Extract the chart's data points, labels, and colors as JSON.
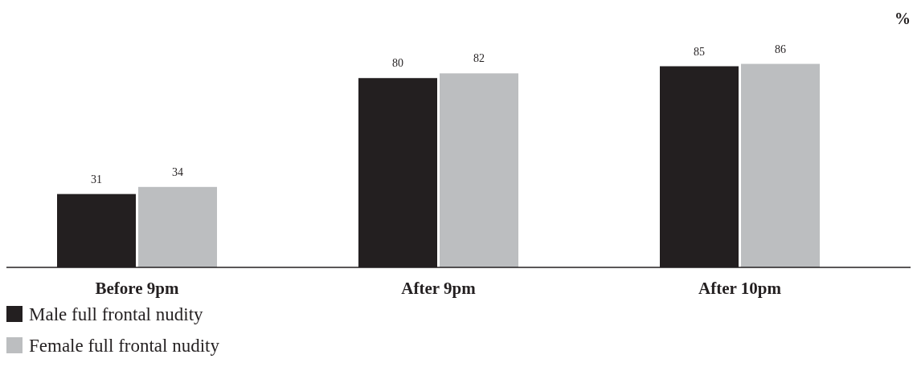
{
  "chart_data": {
    "type": "bar",
    "ylabel": "%",
    "categories": [
      "Before 9pm",
      "After 9pm",
      "After 10pm"
    ],
    "series": [
      {
        "name": "Male full frontal nudity",
        "color": "#231f20",
        "values": [
          31,
          80,
          85
        ]
      },
      {
        "name": "Female full frontal nudity",
        "color": "#bcbec0",
        "values": [
          34,
          82,
          86
        ]
      }
    ],
    "data_labels": true,
    "legend": "bottom left"
  }
}
